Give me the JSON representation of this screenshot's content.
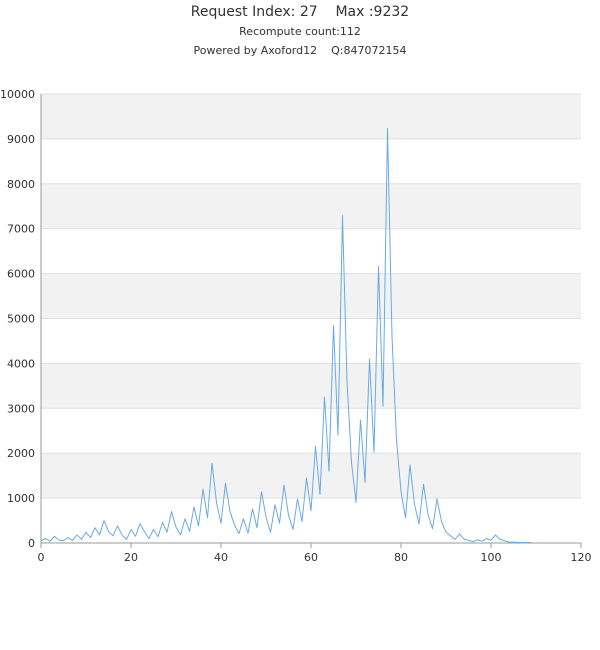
{
  "header": {
    "line1": "Request Index: 27    Max :9232",
    "line2": "Recompute count:112",
    "line3": "Powered by Axoford12    Q:847072154"
  },
  "colors": {
    "line": "#6aaae4",
    "band": "#f2f2f2",
    "grid": "#e0e0e0",
    "axis": "#999999"
  },
  "chart_data": {
    "type": "line",
    "title": "",
    "xlabel": "",
    "ylabel": "",
    "xlim": [
      0,
      120
    ],
    "ylim": [
      0,
      10000
    ],
    "x_ticks": [
      "0",
      "20",
      "40",
      "60",
      "80",
      "100",
      "120"
    ],
    "y_ticks": [
      "0",
      "1000",
      "2000",
      "3000",
      "4000",
      "5000",
      "6000",
      "7000",
      "8000",
      "9000",
      "10000"
    ],
    "grid": true,
    "alternating_bands": true,
    "series": [
      {
        "name": "",
        "x": [
          0,
          1,
          2,
          3,
          4,
          5,
          6,
          7,
          8,
          9,
          10,
          11,
          12,
          13,
          14,
          15,
          16,
          17,
          18,
          19,
          20,
          21,
          22,
          23,
          24,
          25,
          26,
          27,
          28,
          29,
          30,
          31,
          32,
          33,
          34,
          35,
          36,
          37,
          38,
          39,
          40,
          41,
          42,
          43,
          44,
          45,
          46,
          47,
          48,
          49,
          50,
          51,
          52,
          53,
          54,
          55,
          56,
          57,
          58,
          59,
          60,
          61,
          62,
          63,
          64,
          65,
          66,
          67,
          68,
          69,
          70,
          71,
          72,
          73,
          74,
          75,
          76,
          77,
          78,
          79,
          80,
          81,
          82,
          83,
          84,
          85,
          86,
          87,
          88,
          89,
          90,
          91,
          92,
          93,
          94,
          95,
          96,
          97,
          98,
          99,
          100,
          101,
          102,
          103,
          104,
          105,
          106,
          107,
          108,
          109
        ],
        "values": [
          50,
          100,
          40,
          150,
          60,
          50,
          120,
          60,
          180,
          80,
          240,
          120,
          340,
          180,
          500,
          260,
          160,
          380,
          180,
          80,
          300,
          150,
          430,
          250,
          100,
          300,
          140,
          460,
          240,
          700,
          350,
          180,
          540,
          260,
          800,
          380,
          1200,
          560,
          1780,
          900,
          440,
          1330,
          700,
          400,
          210,
          540,
          220,
          760,
          340,
          1140,
          580,
          240,
          850,
          440,
          1290,
          620,
          300,
          980,
          480,
          1450,
          720,
          2150,
          1080,
          3250,
          1600,
          4850,
          2400,
          7290,
          3600,
          1800,
          900,
          2740,
          1350,
          4100,
          2020,
          6160,
          3050,
          9232,
          4600,
          2300,
          1150,
          560,
          1740,
          860,
          420,
          1310,
          640,
          320,
          980,
          480,
          240,
          160,
          80,
          200,
          90,
          60,
          30,
          70,
          40,
          100,
          60,
          180,
          80,
          50,
          20,
          20,
          10,
          10,
          10,
          10
        ]
      }
    ]
  }
}
